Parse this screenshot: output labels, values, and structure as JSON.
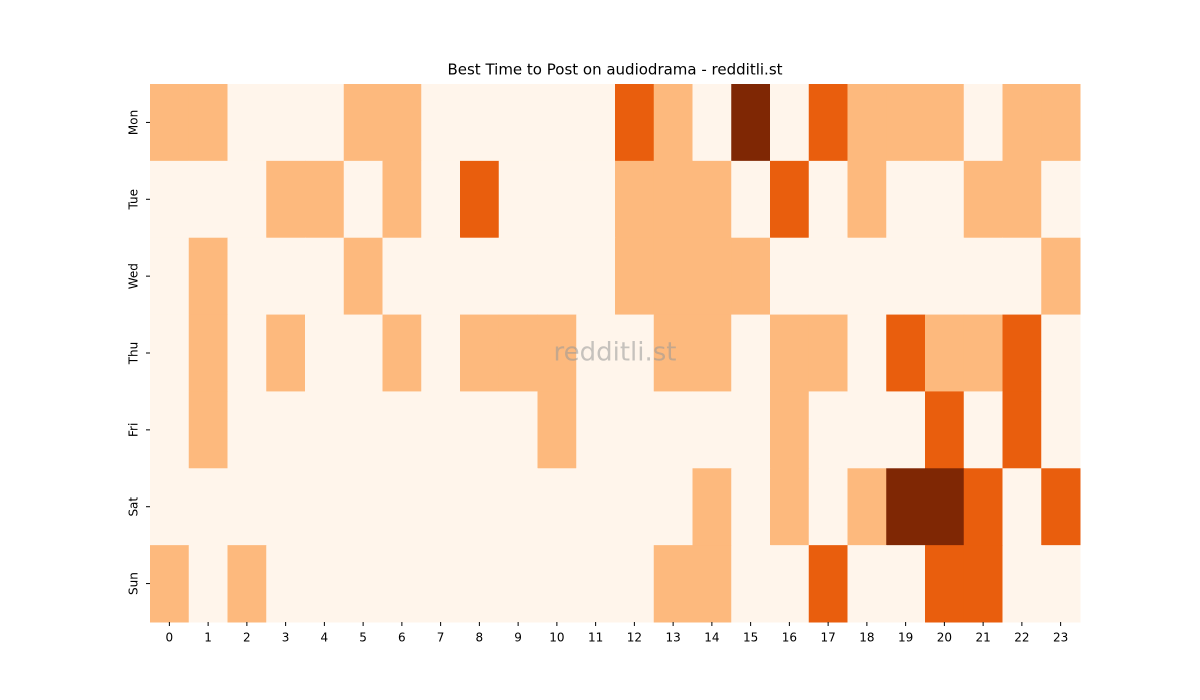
{
  "chart_data": {
    "type": "heatmap",
    "title": "Best Time to Post on audiodrama - redditli.st",
    "watermark": "redditli.st",
    "x": [
      0,
      1,
      2,
      3,
      4,
      5,
      6,
      7,
      8,
      9,
      10,
      11,
      12,
      13,
      14,
      15,
      16,
      17,
      18,
      19,
      20,
      21,
      22,
      23
    ],
    "y": [
      "Mon",
      "Tue",
      "Wed",
      "Thu",
      "Fri",
      "Sat",
      "Sun"
    ],
    "z": [
      [
        1,
        1,
        0,
        0,
        0,
        1,
        1,
        0,
        0,
        0,
        0,
        0,
        2,
        1,
        0,
        3,
        0,
        2,
        1,
        1,
        1,
        0,
        1,
        1
      ],
      [
        0,
        0,
        0,
        1,
        1,
        0,
        1,
        0,
        2,
        0,
        0,
        0,
        1,
        1,
        1,
        0,
        2,
        0,
        1,
        0,
        0,
        1,
        1,
        0
      ],
      [
        0,
        1,
        0,
        0,
        0,
        1,
        0,
        0,
        0,
        0,
        0,
        0,
        1,
        1,
        1,
        1,
        0,
        0,
        0,
        0,
        0,
        0,
        0,
        1
      ],
      [
        0,
        1,
        0,
        1,
        0,
        0,
        1,
        0,
        1,
        1,
        1,
        0,
        0,
        1,
        1,
        0,
        1,
        1,
        0,
        2,
        1,
        1,
        2,
        0
      ],
      [
        0,
        1,
        0,
        0,
        0,
        0,
        0,
        0,
        0,
        0,
        1,
        0,
        0,
        0,
        0,
        0,
        1,
        0,
        0,
        0,
        2,
        0,
        2,
        0
      ],
      [
        0,
        0,
        0,
        0,
        0,
        0,
        0,
        0,
        0,
        0,
        0,
        0,
        0,
        0,
        1,
        0,
        1,
        0,
        1,
        3,
        3,
        2,
        0,
        2
      ],
      [
        1,
        0,
        1,
        0,
        0,
        0,
        0,
        0,
        0,
        0,
        0,
        0,
        0,
        1,
        1,
        0,
        0,
        2,
        0,
        0,
        2,
        2,
        0,
        0
      ]
    ],
    "colors": [
      "#fff5eb",
      "#fdb97d",
      "#e95e0d",
      "#7f2704"
    ]
  }
}
